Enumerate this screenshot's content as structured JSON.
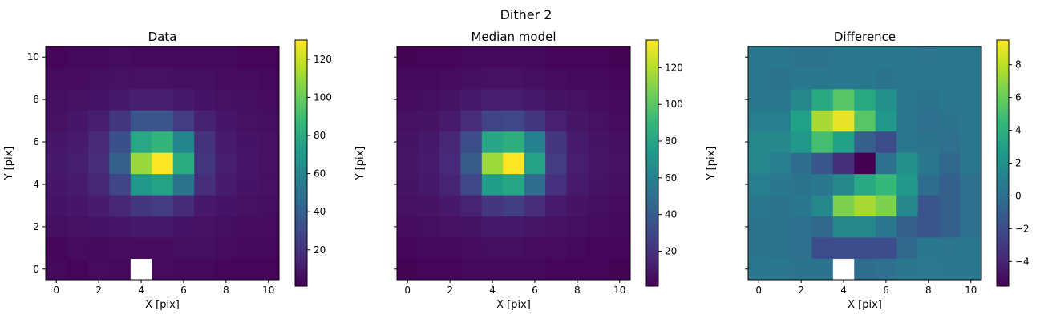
{
  "figure": {
    "suptitle": "Dither 2"
  },
  "chart_data": [
    {
      "type": "heatmap",
      "title": "Data",
      "xlabel": "X [pix]",
      "ylabel": "Y [pix]",
      "xlim": [
        -0.5,
        10.5
      ],
      "ylim": [
        -0.5,
        10.5
      ],
      "xticks": [
        0,
        2,
        4,
        6,
        8,
        10
      ],
      "yticks": [
        0,
        2,
        4,
        6,
        8,
        10
      ],
      "show_ytick_labels": true,
      "colormap": "viridis",
      "colorbar": {
        "min": 1,
        "max": 130,
        "ticks": [
          20,
          40,
          60,
          80,
          100,
          120
        ]
      },
      "missing_cells": [
        [
          4,
          0
        ]
      ],
      "z": [
        [
          4,
          3,
          5,
          4,
          null,
          5,
          4,
          4,
          3,
          3,
          3
        ],
        [
          3,
          5,
          4,
          5,
          5,
          5,
          6,
          6,
          5,
          4,
          4
        ],
        [
          6,
          7,
          8,
          9,
          10,
          10,
          8,
          7,
          6,
          5,
          5
        ],
        [
          8,
          9,
          11,
          15,
          22,
          24,
          17,
          10,
          8,
          7,
          6
        ],
        [
          9,
          11,
          15,
          28,
          70,
          75,
          50,
          18,
          11,
          8,
          7
        ],
        [
          10,
          12,
          18,
          40,
          110,
          130,
          80,
          22,
          12,
          9,
          7
        ],
        [
          9,
          11,
          16,
          33,
          78,
          85,
          60,
          20,
          11,
          8,
          7
        ],
        [
          7,
          9,
          12,
          22,
          35,
          35,
          24,
          13,
          9,
          7,
          6
        ],
        [
          6,
          7,
          8,
          10,
          12,
          12,
          10,
          8,
          7,
          6,
          5
        ],
        [
          5,
          5,
          6,
          7,
          7,
          7,
          6,
          6,
          5,
          5,
          4
        ],
        [
          3,
          4,
          4,
          5,
          4,
          4,
          4,
          4,
          4,
          3,
          3
        ]
      ]
    },
    {
      "type": "heatmap",
      "title": "Median model",
      "xlabel": "X [pix]",
      "ylabel": "Y [pix]",
      "xlim": [
        -0.5,
        10.5
      ],
      "ylim": [
        -0.5,
        10.5
      ],
      "xticks": [
        0,
        2,
        4,
        6,
        8,
        10
      ],
      "yticks": [
        0,
        2,
        4,
        6,
        8,
        10
      ],
      "show_ytick_labels": false,
      "colormap": "viridis",
      "colorbar": {
        "min": 1,
        "max": 135,
        "ticks": [
          20,
          40,
          60,
          80,
          100,
          120
        ]
      },
      "z": [
        [
          2,
          3,
          3,
          4,
          4,
          4,
          4,
          3,
          3,
          3,
          2
        ],
        [
          3,
          4,
          4,
          5,
          6,
          6,
          5,
          5,
          4,
          3,
          3
        ],
        [
          5,
          6,
          7,
          8,
          10,
          10,
          9,
          7,
          6,
          5,
          4
        ],
        [
          7,
          8,
          10,
          14,
          22,
          26,
          18,
          11,
          8,
          6,
          5
        ],
        [
          8,
          10,
          14,
          30,
          75,
          80,
          48,
          20,
          11,
          8,
          6
        ],
        [
          9,
          11,
          17,
          40,
          115,
          135,
          78,
          25,
          12,
          9,
          7
        ],
        [
          8,
          10,
          15,
          33,
          80,
          85,
          60,
          22,
          11,
          8,
          6
        ],
        [
          7,
          8,
          11,
          18,
          28,
          30,
          22,
          13,
          9,
          7,
          5
        ],
        [
          5,
          6,
          8,
          10,
          12,
          12,
          10,
          8,
          7,
          5,
          4
        ],
        [
          4,
          4,
          5,
          6,
          7,
          7,
          6,
          5,
          4,
          4,
          3
        ],
        [
          2,
          3,
          3,
          4,
          4,
          4,
          4,
          3,
          3,
          3,
          2
        ]
      ]
    },
    {
      "type": "heatmap",
      "title": "Difference",
      "xlabel": "X [pix]",
      "ylabel": "Y [pix]",
      "xlim": [
        -0.5,
        10.5
      ],
      "ylim": [
        -0.5,
        10.5
      ],
      "xticks": [
        0,
        2,
        4,
        6,
        8,
        10
      ],
      "yticks": [
        0,
        2,
        4,
        6,
        8,
        10
      ],
      "show_ytick_labels": false,
      "colormap": "viridis",
      "colorbar": {
        "min": -5.5,
        "max": 9.5,
        "ticks": [
          -4,
          -2,
          0,
          2,
          4,
          6,
          8
        ]
      },
      "missing_cells": [
        [
          4,
          0
        ]
      ],
      "z": [
        [
          0.5,
          0.5,
          0.3,
          0.2,
          null,
          -0.2,
          0.0,
          0.5,
          0.6,
          0.5,
          0.5
        ],
        [
          0.3,
          0.2,
          0.0,
          -2.0,
          -2.0,
          -2.0,
          -2.0,
          -0.5,
          0.5,
          0.4,
          0.5
        ],
        [
          0.3,
          0.2,
          0.0,
          -0.5,
          1.5,
          1.5,
          0.5,
          -1.0,
          -1.5,
          -1.0,
          0.0
        ],
        [
          0.5,
          0.3,
          0.5,
          1.5,
          6.5,
          7.5,
          6.5,
          1.5,
          -1.5,
          -1.0,
          0.0
        ],
        [
          1.0,
          0.5,
          0.2,
          0.5,
          1.5,
          3.5,
          4.5,
          2.5,
          -0.2,
          -1.0,
          0.0
        ],
        [
          1.5,
          1.0,
          -0.2,
          -1.5,
          -3.5,
          -5.5,
          0.0,
          2.0,
          0.5,
          -0.5,
          0.5
        ],
        [
          1.5,
          1.5,
          2.5,
          5.0,
          3.0,
          -1.0,
          -2.0,
          0.5,
          0.3,
          0.0,
          0.5
        ],
        [
          1.0,
          1.0,
          3.0,
          7.5,
          9.0,
          5.5,
          2.5,
          0.5,
          0.0,
          0.3,
          0.5
        ],
        [
          0.5,
          0.5,
          1.5,
          3.5,
          5.5,
          3.5,
          2.0,
          0.5,
          0.2,
          0.5,
          0.5
        ],
        [
          0.5,
          0.3,
          0.5,
          0.5,
          0.5,
          0.5,
          0.3,
          0.5,
          0.5,
          0.5,
          0.5
        ],
        [
          0.5,
          0.5,
          0.3,
          0.3,
          0.5,
          0.5,
          0.5,
          0.5,
          0.4,
          0.5,
          0.5
        ]
      ]
    }
  ]
}
